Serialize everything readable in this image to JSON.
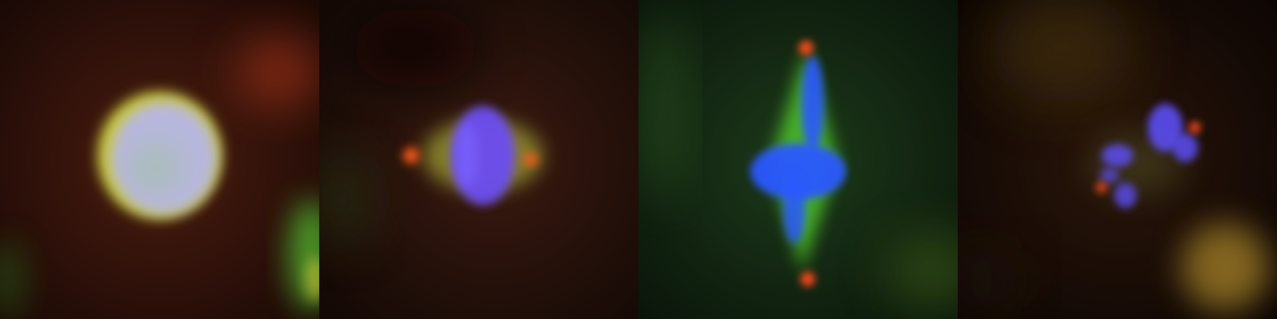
{
  "panels": [
    {
      "id": "panel-1",
      "background": "#2a0f08",
      "colors": {
        "nucleus": "#b7b6e6",
        "rim": "#d9de45",
        "glow": "#c23b1b",
        "green_cell": "#53b02d"
      }
    },
    {
      "id": "panel-2",
      "background": "#1f0f0a",
      "colors": {
        "chromatin": "#6c4df2",
        "spindle": "#b9c03d",
        "centrosome": "#ff5a1d"
      }
    },
    {
      "id": "panel-3",
      "background": "#0f1e0f",
      "colors": {
        "chromatin": "#2b58ff",
        "spindle": "#56d72f",
        "centrosome": "#ff4a1d"
      }
    },
    {
      "id": "panel-4",
      "background": "#120804",
      "colors": {
        "chromatin": "#5b4df3",
        "spot": "#ff4d21",
        "haze": "#b08b2a"
      }
    }
  ]
}
